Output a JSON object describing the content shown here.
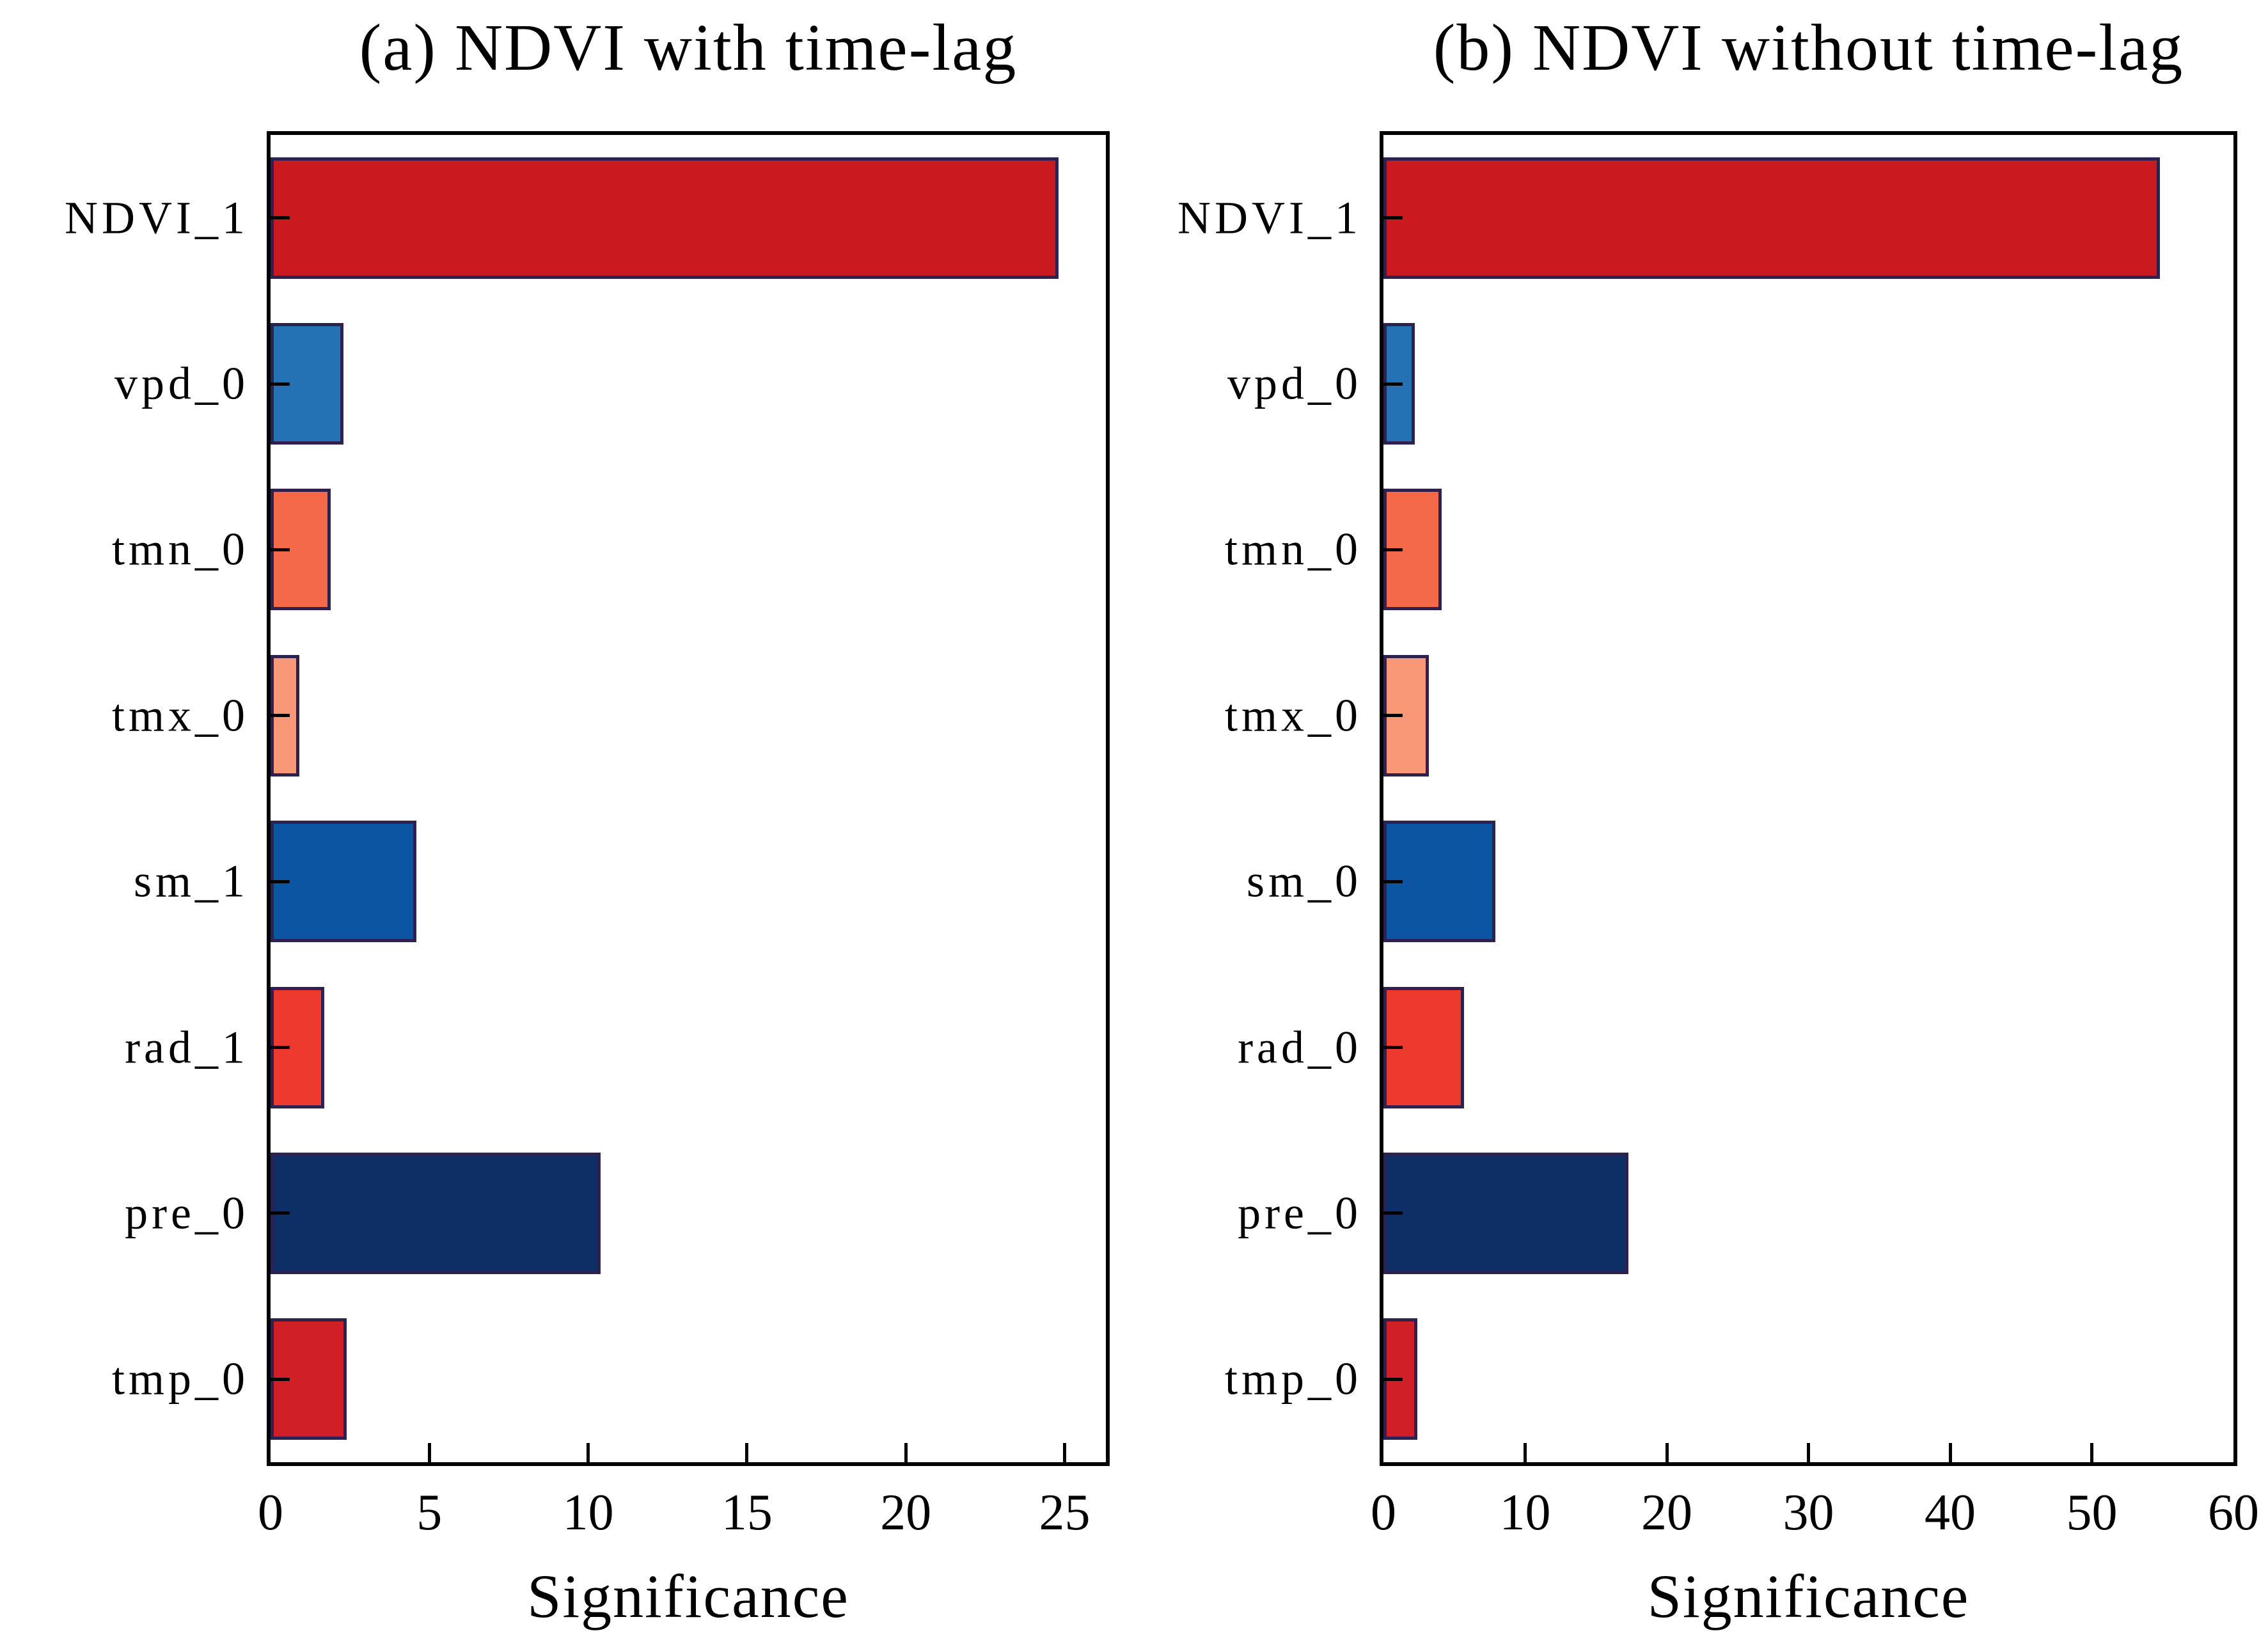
{
  "figure": {
    "background": "#ffffff",
    "axis_color": "#000000",
    "bar_edge_color": "#2e2150"
  },
  "chart_data": [
    {
      "type": "bar",
      "orientation": "horizontal",
      "title": "(a) NDVI with time-lag",
      "xlabel": "Significance",
      "categories": [
        "NDVI_1",
        "vpd_0",
        "tmn_0",
        "tmx_0",
        "sm_1",
        "rad_1",
        "pre_0",
        "tmp_0"
      ],
      "values": [
        24.8,
        2.3,
        1.9,
        0.9,
        4.6,
        1.7,
        10.4,
        2.4
      ],
      "colors": [
        "#cb1a1f",
        "#2471b3",
        "#f4694a",
        "#f99877",
        "#0c55a2",
        "#ed392e",
        "#0d2f66",
        "#d01f27"
      ],
      "xlim": [
        0,
        26.3
      ],
      "xticks": [
        0,
        5,
        10,
        15,
        20,
        25
      ],
      "grid": false,
      "legend": null
    },
    {
      "type": "bar",
      "orientation": "horizontal",
      "title": "(b) NDVI without time-lag",
      "xlabel": "Significance",
      "categories": [
        "NDVI_1",
        "vpd_0",
        "tmn_0",
        "tmx_0",
        "sm_0",
        "rad_0",
        "pre_0",
        "tmp_0"
      ],
      "values": [
        54.8,
        2.2,
        4.1,
        3.2,
        7.9,
        5.7,
        17.3,
        2.4
      ],
      "colors": [
        "#cb1a1f",
        "#2471b3",
        "#f4694a",
        "#f99877",
        "#0c55a2",
        "#ed392e",
        "#0d2f66",
        "#d01f27"
      ],
      "xlim": [
        0,
        60
      ],
      "xticks": [
        0,
        10,
        20,
        30,
        40,
        50,
        60
      ],
      "grid": false,
      "legend": null
    }
  ]
}
